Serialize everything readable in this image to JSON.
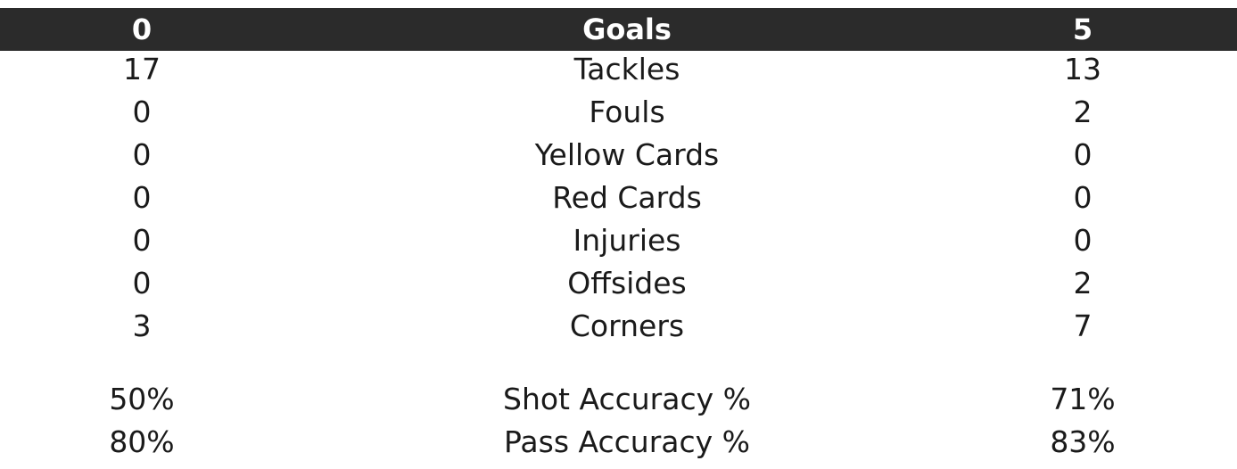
{
  "header": {
    "home_goals": "0",
    "label": "Goals",
    "away_goals": "5"
  },
  "rows": [
    {
      "home": "17",
      "label": "Tackles",
      "away": "13"
    },
    {
      "home": "0",
      "label": "Fouls",
      "away": "2"
    },
    {
      "home": "0",
      "label": "Yellow Cards",
      "away": "0"
    },
    {
      "home": "0",
      "label": "Red Cards",
      "away": "0"
    },
    {
      "home": "0",
      "label": "Injuries",
      "away": "0"
    },
    {
      "home": "0",
      "label": "Offsides",
      "away": "2"
    },
    {
      "home": "3",
      "label": "Corners",
      "away": "7"
    }
  ],
  "accuracy": [
    {
      "home": "50%",
      "label": "Shot Accuracy %",
      "away": "71%"
    },
    {
      "home": "80%",
      "label": "Pass Accuracy %",
      "away": "83%"
    }
  ],
  "colors": {
    "header_bg": "#2b2b2b",
    "header_text": "#ffffff",
    "text": "#1a1a1a"
  }
}
